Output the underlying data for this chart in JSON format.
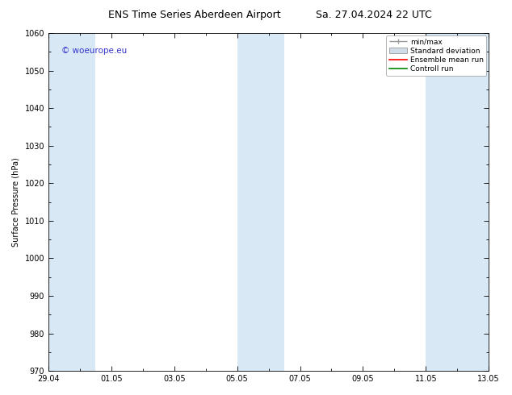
{
  "title": "ENS Time Series Aberdeen Airport",
  "title2": "Sa. 27.04.2024 22 UTC",
  "ylabel": "Surface Pressure (hPa)",
  "ylim": [
    970,
    1060
  ],
  "yticks": [
    970,
    980,
    990,
    1000,
    1010,
    1020,
    1030,
    1040,
    1050,
    1060
  ],
  "xtick_labels": [
    "29.04",
    "01.05",
    "03.05",
    "05.05",
    "07.05",
    "09.05",
    "11.05",
    "13.05"
  ],
  "bg_color": "#ffffff",
  "plot_bg_color": "#ffffff",
  "band_color": "#d8e8f5",
  "watermark": "© woeurope.eu",
  "watermark_color": "#3333cc",
  "legend_items": [
    "min/max",
    "Standard deviation",
    "Ensemble mean run",
    "Controll run"
  ],
  "legend_colors_line": [
    "#999999",
    "#bbbbbb",
    "#ff0000",
    "#008800"
  ],
  "font_size": 7,
  "title_font_size": 9,
  "band_starts_days": [
    0.0,
    6.0,
    12.0
  ],
  "band_ends_days": [
    1.5,
    7.5,
    14.0
  ],
  "total_days": 14
}
